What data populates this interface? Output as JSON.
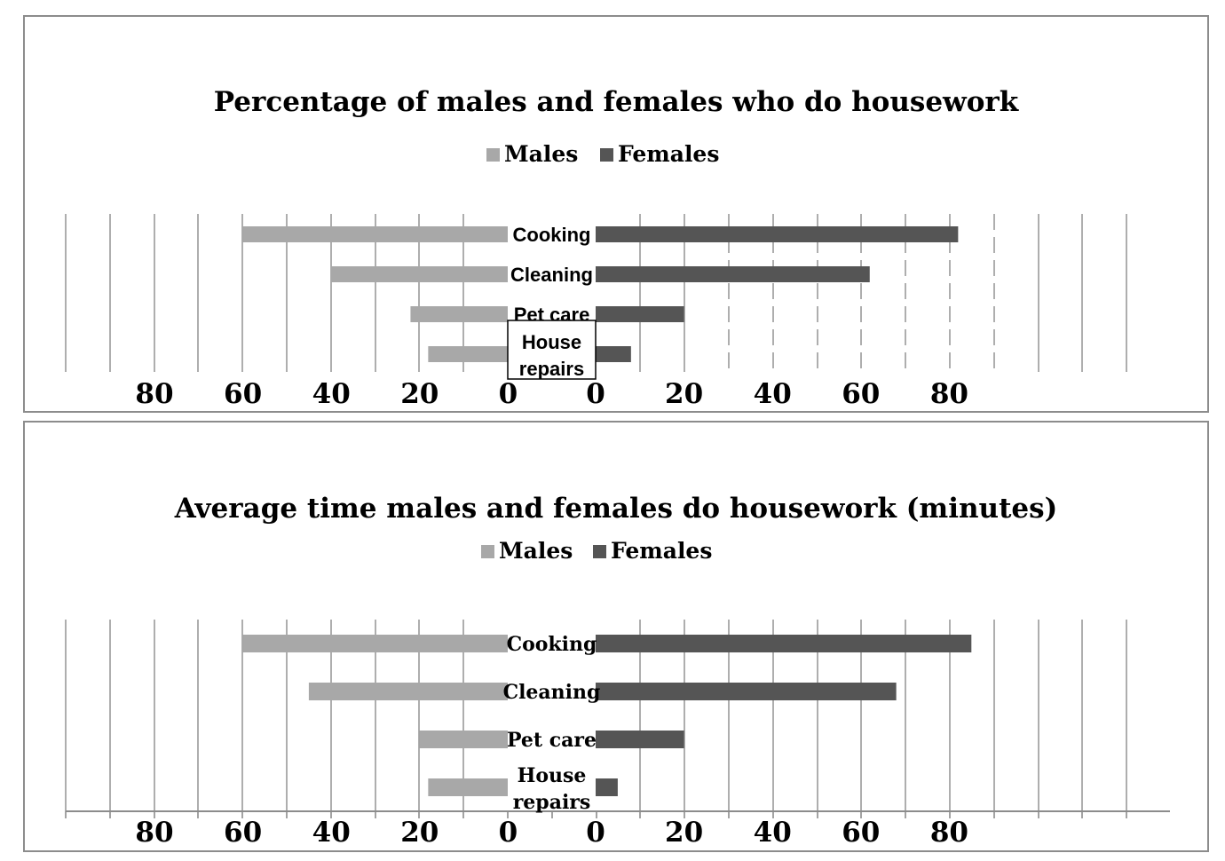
{
  "chart_data": [
    {
      "type": "bar",
      "title": "Percentage of males and females who do housework",
      "legend": [
        "Males",
        "Females"
      ],
      "legend_position": "top",
      "categories": [
        "Cooking",
        "Cleaning",
        "Pet care",
        "House repairs"
      ],
      "series": [
        {
          "name": "Males",
          "values": [
            60,
            40,
            22,
            18
          ]
        },
        {
          "name": "Females",
          "values": [
            82,
            62,
            20,
            8
          ]
        }
      ],
      "tick_labels_left": [
        "80",
        "60",
        "40",
        "20",
        "0"
      ],
      "tick_labels_right": [
        "0",
        "20",
        "40",
        "60",
        "80"
      ],
      "xlim": [
        0,
        100
      ],
      "grid": true,
      "colors": {
        "Males": "#a8a8a8",
        "Females": "#555555"
      }
    },
    {
      "type": "bar",
      "title": "Average time males and females do housework (minutes)",
      "legend": [
        "Males",
        "Females"
      ],
      "legend_position": "top",
      "categories": [
        "Cooking",
        "Cleaning",
        "Pet care",
        "House repairs"
      ],
      "series": [
        {
          "name": "Males",
          "values": [
            60,
            45,
            20,
            18
          ]
        },
        {
          "name": "Females",
          "values": [
            85,
            68,
            20,
            5
          ]
        }
      ],
      "tick_labels_left": [
        "80",
        "60",
        "40",
        "20",
        "0"
      ],
      "tick_labels_right": [
        "0",
        "20",
        "40",
        "60",
        "80"
      ],
      "xlim": [
        0,
        100
      ],
      "grid": true,
      "colors": {
        "Males": "#a8a8a8",
        "Females": "#555555"
      }
    }
  ]
}
